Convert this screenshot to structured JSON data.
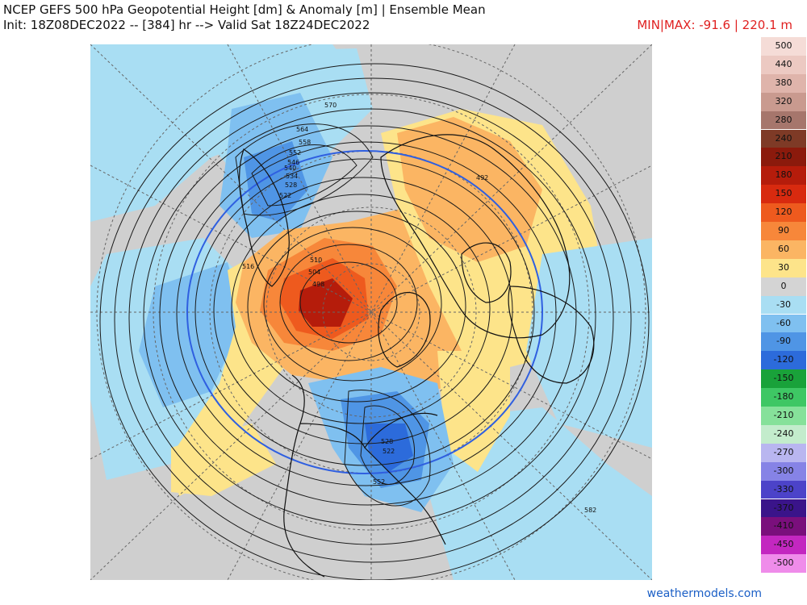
{
  "header": {
    "title_line1": "NCEP GEFS 500 hPa Geopotential Height [dm] & Anomaly [m] | Ensemble Mean",
    "title_line2": "Init: 18Z08DEC2022 -- [384] hr --> Valid Sat 18Z24DEC2022",
    "minmax": "MIN|MAX: -91.6 | 220.1 m"
  },
  "map": {
    "contour_labels": [
      "570",
      "564",
      "558",
      "552",
      "546",
      "540",
      "534",
      "528",
      "522",
      "516",
      "510",
      "504",
      "498",
      "492",
      "582",
      "528",
      "522",
      "552"
    ],
    "colors": {
      "background": "#cfcfcf",
      "coast": "#111111",
      "contour": "#1a1a1a",
      "blue_contour": "#2f5fe0",
      "graticule": "#666666"
    }
  },
  "colorbar": {
    "entries": [
      {
        "label": "500",
        "color": "#f5dcd7"
      },
      {
        "label": "440",
        "color": "#ecc9c2"
      },
      {
        "label": "380",
        "color": "#dfb4ab"
      },
      {
        "label": "320",
        "color": "#c99a8f"
      },
      {
        "label": "280",
        "color": "#a6766c"
      },
      {
        "label": "240",
        "color": "#7e3a26"
      },
      {
        "label": "210",
        "color": "#8b1a0c"
      },
      {
        "label": "180",
        "color": "#b51c0b"
      },
      {
        "label": "150",
        "color": "#d82a0f"
      },
      {
        "label": "120",
        "color": "#ee5a1e"
      },
      {
        "label": "90",
        "color": "#f7873a"
      },
      {
        "label": "60",
        "color": "#fbb563"
      },
      {
        "label": "30",
        "color": "#fde48a"
      },
      {
        "label": "0",
        "color": "#d4d4d4"
      },
      {
        "label": "-30",
        "color": "#a9def3"
      },
      {
        "label": "-60",
        "color": "#7fc0f0"
      },
      {
        "label": "-90",
        "color": "#4f95e5"
      },
      {
        "label": "-120",
        "color": "#2c6bdb"
      },
      {
        "label": "-150",
        "color": "#19a23a"
      },
      {
        "label": "-180",
        "color": "#3ec764"
      },
      {
        "label": "-210",
        "color": "#86e19a"
      },
      {
        "label": "-240",
        "color": "#c3eccc"
      },
      {
        "label": "-270",
        "color": "#b9b6f0"
      },
      {
        "label": "-300",
        "color": "#8683e6"
      },
      {
        "label": "-330",
        "color": "#4c43c9"
      },
      {
        "label": "-370",
        "color": "#3a148a"
      },
      {
        "label": "-410",
        "color": "#7a0f7c"
      },
      {
        "label": "-450",
        "color": "#c327c0"
      },
      {
        "label": "-500",
        "color": "#ef8cea"
      }
    ]
  },
  "footer": {
    "credit": "weathermodels.com"
  }
}
